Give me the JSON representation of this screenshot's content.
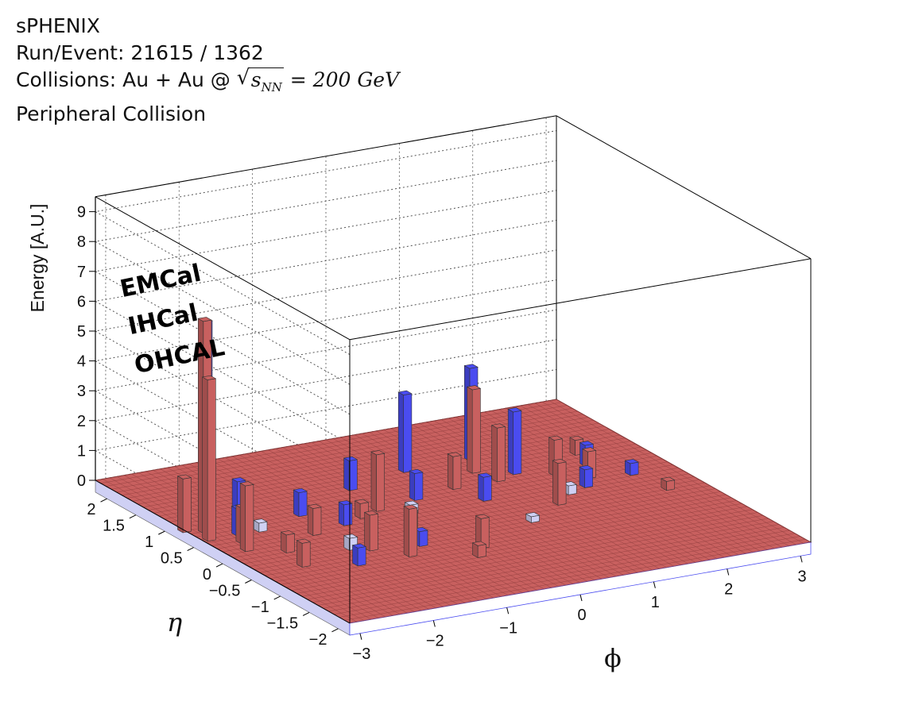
{
  "header": {
    "experiment": "sPHENIX",
    "run_event": "Run/Event: 21615 / 1362",
    "collisions_prefix": "Collisions: Au + Au @ ",
    "sqrt_s": "s",
    "sqrt_sub": "NN",
    "energy": " = 200 GeV",
    "centrality": "Peripheral Collision"
  },
  "legend": {
    "emcal": "EMCal",
    "ihcal": "IHCal",
    "ohcal": "OHCAL"
  },
  "colors": {
    "emcal": "#c8605f",
    "ihcal": "#cfd0f4",
    "ohcal": "#4a4cf0",
    "grid": "#555555",
    "frame": "#000000"
  },
  "chart_data": {
    "type": "lego3d",
    "xlabel": "ϕ",
    "ylabel": "η",
    "zlabel": "Energy [A.U.]",
    "xlim": [
      -3.14,
      3.14
    ],
    "ylim": [
      -2.2,
      2.2
    ],
    "zlim": [
      0,
      9.5
    ],
    "x_ticks": [
      "−3",
      "−2",
      "−1",
      "0",
      "1",
      "2",
      "3"
    ],
    "x_tick_values": [
      -3,
      -2,
      -1,
      0,
      1,
      2,
      3
    ],
    "y_ticks": [
      "−2",
      "−1.5",
      "−1",
      "−0.5",
      "0",
      "0.5",
      "1",
      "1.5",
      "2"
    ],
    "y_tick_values": [
      -2,
      -1.5,
      -1,
      -0.5,
      0,
      0.5,
      1,
      1.5,
      2
    ],
    "z_ticks": [
      "0",
      "1",
      "2",
      "3",
      "4",
      "5",
      "6",
      "7",
      "8",
      "9"
    ],
    "z_tick_values": [
      0,
      1,
      2,
      3,
      4,
      5,
      6,
      7,
      8,
      9
    ],
    "grid": true,
    "series": [
      {
        "name": "EMCal",
        "towers": [
          {
            "phi": -3.0,
            "eta": 0.6,
            "e": 7.1
          },
          {
            "phi": -3.1,
            "eta": 0.4,
            "e": 5.4
          },
          {
            "phi": -3.2,
            "eta": 0.7,
            "e": 1.8
          },
          {
            "phi": -2.9,
            "eta": 0.0,
            "e": 2.2
          },
          {
            "phi": -2.8,
            "eta": 0.2,
            "e": 1.2
          },
          {
            "phi": -2.6,
            "eta": -0.6,
            "e": 0.8
          },
          {
            "phi": -2.5,
            "eta": -0.2,
            "e": 0.6
          },
          {
            "phi": -1.9,
            "eta": 0.1,
            "e": 0.9
          },
          {
            "phi": -1.6,
            "eta": -0.5,
            "e": 1.2
          },
          {
            "phi": -1.3,
            "eta": -0.8,
            "e": 1.6
          },
          {
            "phi": -1.1,
            "eta": 0.3,
            "e": 0.5
          },
          {
            "phi": -0.9,
            "eta": -0.3,
            "e": 0.8
          },
          {
            "phi": -0.8,
            "eta": 0.4,
            "e": 1.9
          },
          {
            "phi": -0.6,
            "eta": -1.1,
            "e": 0.4
          },
          {
            "phi": -0.4,
            "eta": -0.9,
            "e": 1.0
          },
          {
            "phi": 0.4,
            "eta": 0.6,
            "e": 1.1
          },
          {
            "phi": 0.9,
            "eta": 0.9,
            "e": 2.8
          },
          {
            "phi": 1.0,
            "eta": 0.6,
            "e": 1.8
          },
          {
            "phi": 1.2,
            "eta": -0.2,
            "e": 1.4
          },
          {
            "phi": 1.7,
            "eta": 0.5,
            "e": 1.2
          },
          {
            "phi": 2.0,
            "eta": 0.3,
            "e": 0.9
          },
          {
            "phi": 2.3,
            "eta": 0.9,
            "e": 0.5
          },
          {
            "phi": 2.6,
            "eta": -0.3,
            "e": 0.3
          }
        ]
      },
      {
        "name": "IHCal",
        "towers": [
          {
            "phi": -2.4,
            "eta": 0.4,
            "e": 0.3
          },
          {
            "phi": -1.8,
            "eta": -0.4,
            "e": 0.4
          },
          {
            "phi": -0.5,
            "eta": 0.2,
            "e": 0.3
          },
          {
            "phi": 0.6,
            "eta": -0.5,
            "e": 0.2
          },
          {
            "phi": 1.5,
            "eta": 0.0,
            "e": 0.3
          }
        ]
      },
      {
        "name": "OHCAL",
        "towers": [
          {
            "phi": -2.95,
            "eta": 0.65,
            "e": 7.0
          },
          {
            "phi": -2.7,
            "eta": 0.4,
            "e": 0.9
          },
          {
            "phi": -2.3,
            "eta": 0.9,
            "e": 1.1
          },
          {
            "phi": -2.0,
            "eta": -0.8,
            "e": 0.6
          },
          {
            "phi": -1.7,
            "eta": 0.6,
            "e": 0.8
          },
          {
            "phi": -1.4,
            "eta": 0.2,
            "e": 0.7
          },
          {
            "phi": -1.0,
            "eta": -0.6,
            "e": 0.5
          },
          {
            "phi": -0.7,
            "eta": 1.0,
            "e": 1.0
          },
          {
            "phi": -0.2,
            "eta": 0.5,
            "e": 0.9
          },
          {
            "phi": 0.2,
            "eta": 1.2,
            "e": 2.6
          },
          {
            "phi": 0.5,
            "eta": 0.2,
            "e": 0.8
          },
          {
            "phi": 1.1,
            "eta": 1.2,
            "e": 3.1
          },
          {
            "phi": 1.3,
            "eta": 0.7,
            "e": 2.1
          },
          {
            "phi": 1.8,
            "eta": 0.1,
            "e": 0.6
          },
          {
            "phi": 2.2,
            "eta": 0.6,
            "e": 0.7
          },
          {
            "phi": 2.5,
            "eta": 0.2,
            "e": 0.4
          }
        ]
      }
    ]
  }
}
